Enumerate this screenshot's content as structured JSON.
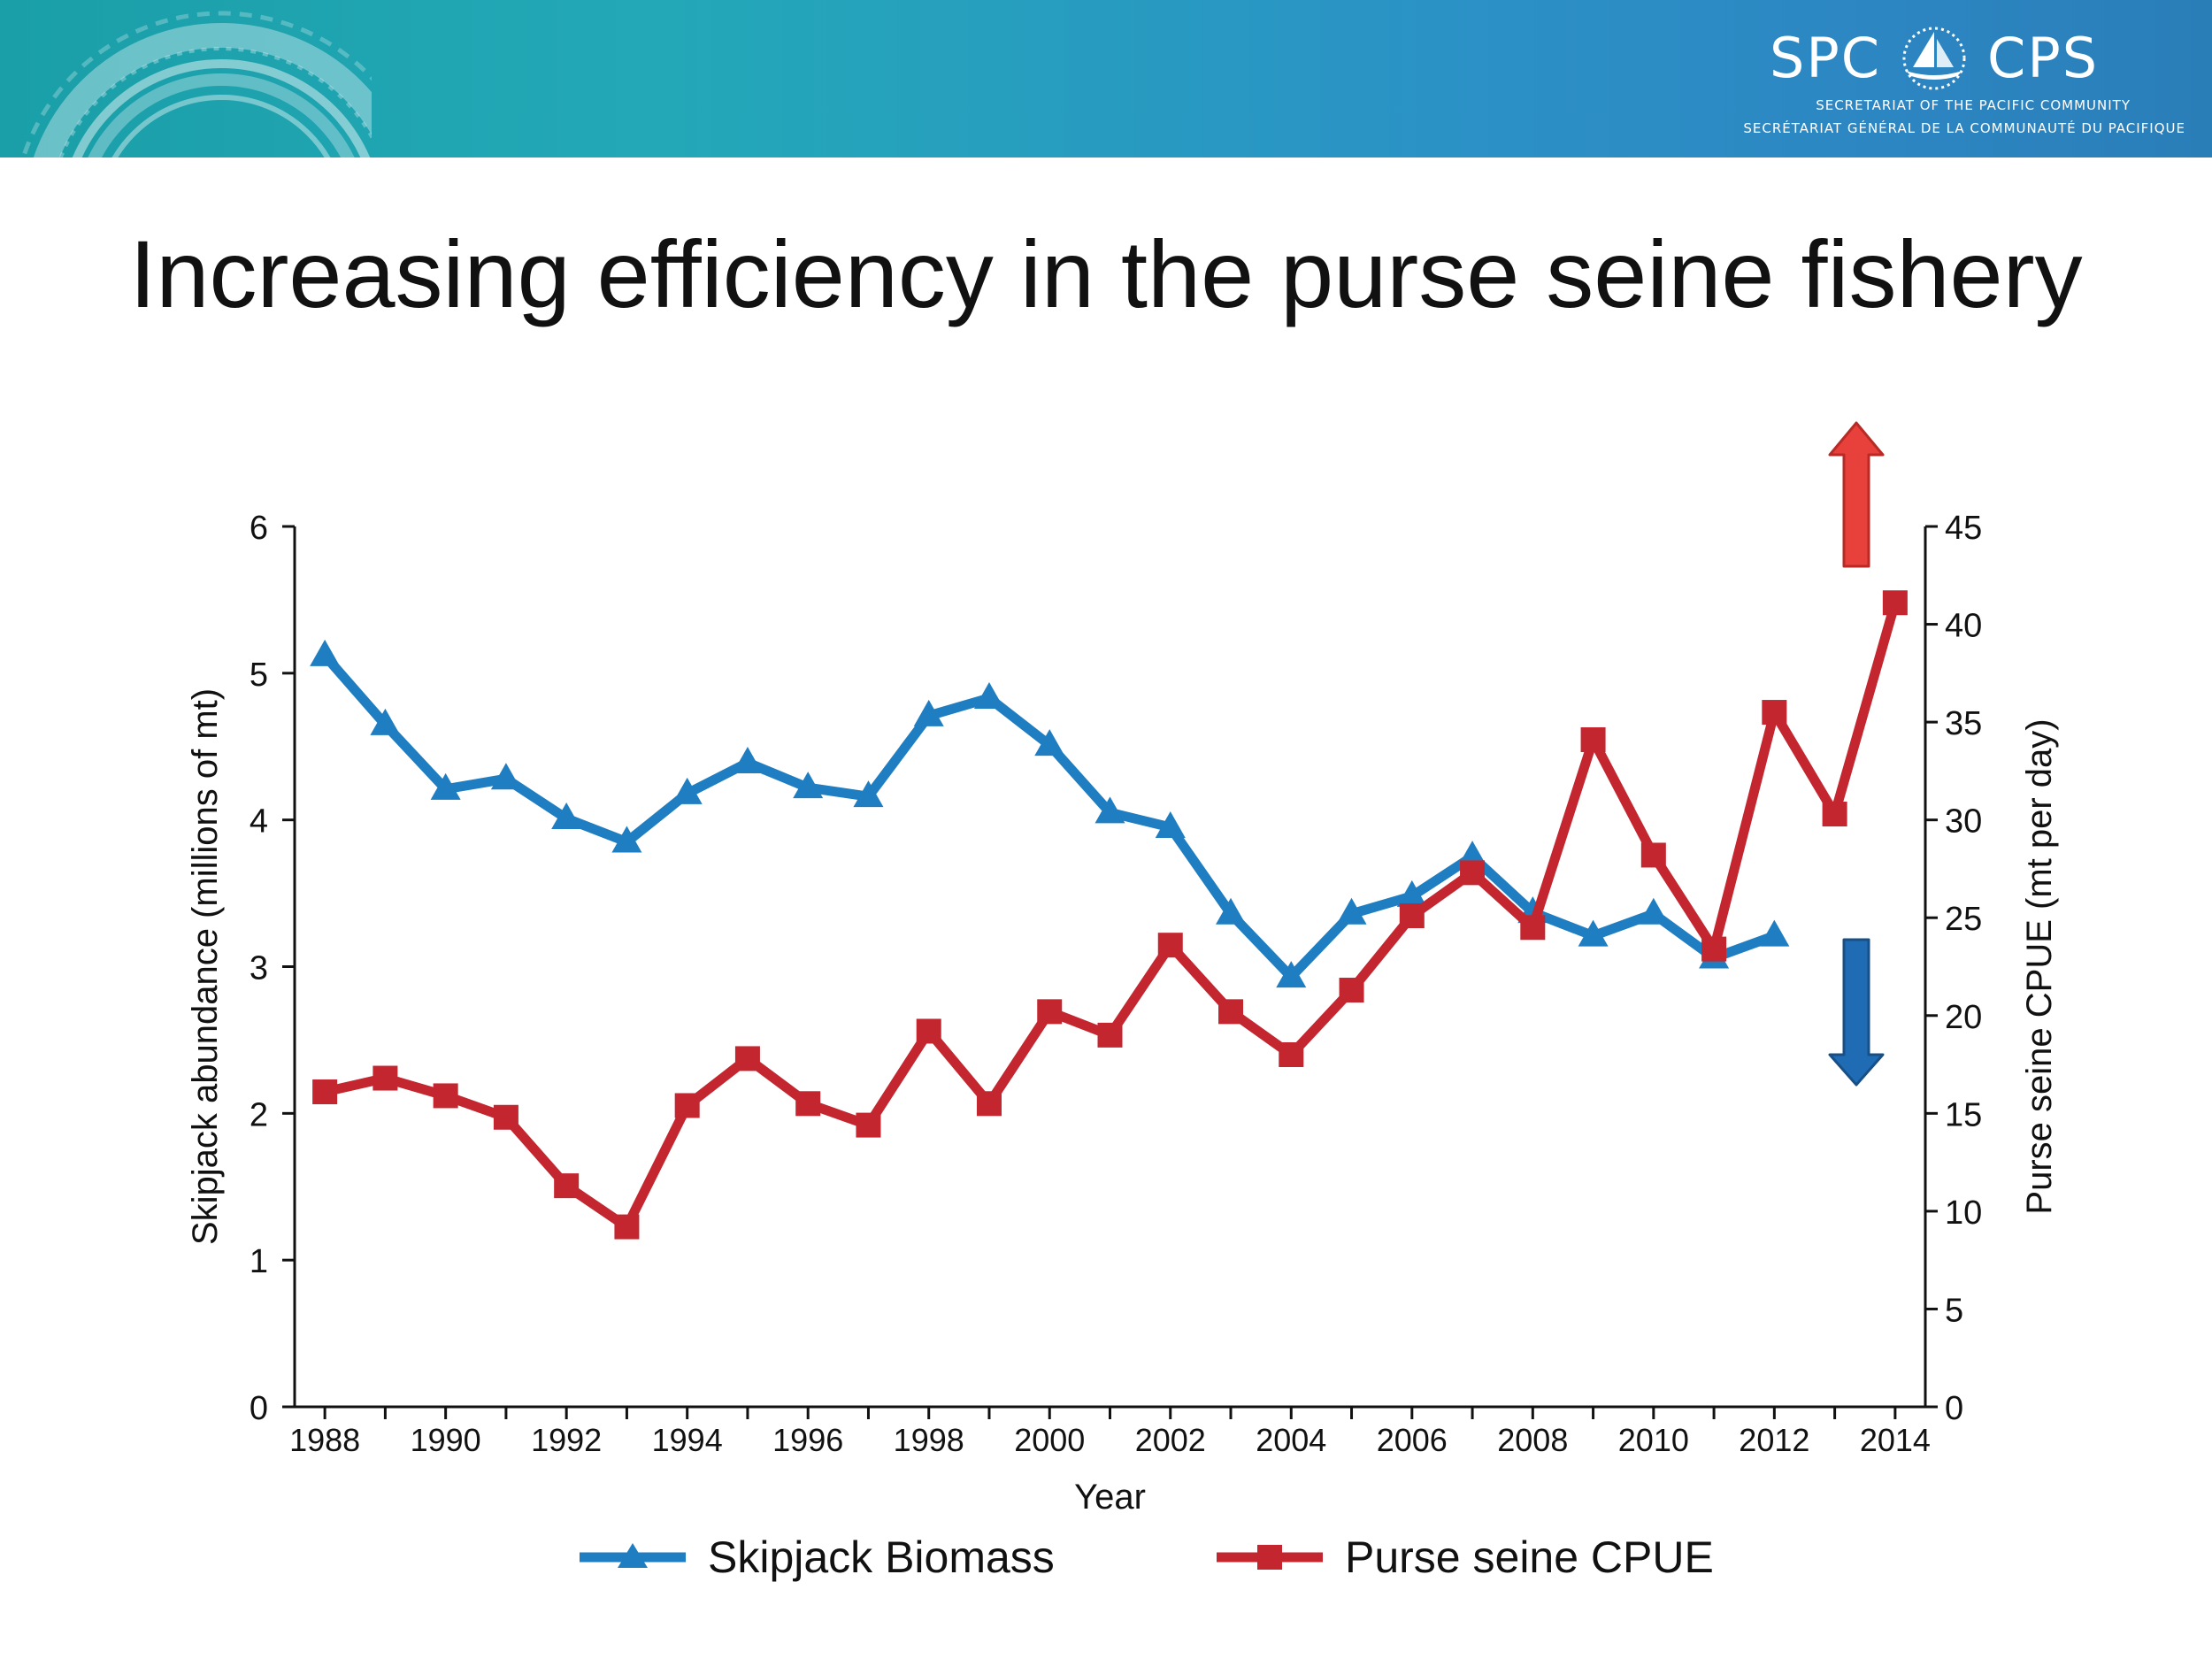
{
  "slide": {
    "title": "Increasing efficiency in the purse seine fishery"
  },
  "logo": {
    "left_text": "SPC",
    "right_text": "CPS",
    "line1": "Secretariat of the Pacific Community",
    "line2": "Secrétariat général de la Communauté du Pacifique"
  },
  "colors": {
    "banner": "#23a8b8",
    "biomass": "#1f7ec1",
    "cpue": "#c42630",
    "arrow_up": "#e8403a",
    "arrow_down": "#1f6cb5"
  },
  "chart_data": {
    "type": "line",
    "xlabel": "Year",
    "ylabel": "Skipjack abundance (millions of mt)",
    "y2label": "Purse seine CPUE (mt per day)",
    "xlim": [
      1987.5,
      2014.5
    ],
    "ylim": [
      0,
      6
    ],
    "y2lim": [
      0,
      45
    ],
    "x_ticks": [
      1988,
      1990,
      1992,
      1994,
      1996,
      1998,
      2000,
      2002,
      2004,
      2006,
      2008,
      2010,
      2012,
      2014
    ],
    "y_ticks": [
      0,
      1,
      2,
      3,
      4,
      5,
      6
    ],
    "y2_ticks": [
      0,
      5,
      10,
      15,
      20,
      25,
      30,
      35,
      40,
      45
    ],
    "grid": false,
    "legend_position": "bottom",
    "series": [
      {
        "name": "Skipjack Biomass",
        "axis": "left",
        "marker": "triangle",
        "color": "#1f7ec1",
        "x": [
          1988,
          1989,
          1990,
          1991,
          1992,
          1993,
          1994,
          1995,
          1996,
          1997,
          1998,
          1999,
          2000,
          2001,
          2002,
          2003,
          2004,
          2005,
          2006,
          2007,
          2008,
          2009,
          2010,
          2011,
          2012
        ],
        "values": [
          5.12,
          4.65,
          4.21,
          4.28,
          4.01,
          3.85,
          4.18,
          4.39,
          4.22,
          4.16,
          4.71,
          4.83,
          4.51,
          4.05,
          3.95,
          3.36,
          2.93,
          3.36,
          3.48,
          3.75,
          3.37,
          3.21,
          3.36,
          3.06,
          3.21
        ]
      },
      {
        "name": "Purse seine CPUE",
        "axis": "right",
        "marker": "square",
        "color": "#c42630",
        "x": [
          1988,
          1989,
          1990,
          1991,
          1992,
          1993,
          1994,
          1995,
          1996,
          1997,
          1998,
          1999,
          2000,
          2001,
          2002,
          2003,
          2004,
          2005,
          2006,
          2007,
          2008,
          2009,
          2010,
          2011,
          2012,
          2013,
          2014
        ],
        "values": [
          16.1,
          16.8,
          15.9,
          14.8,
          11.3,
          9.2,
          15.4,
          17.8,
          15.5,
          14.4,
          19.2,
          15.5,
          20.2,
          19.0,
          23.6,
          20.2,
          18.0,
          21.3,
          25.1,
          27.3,
          24.5,
          34.1,
          28.2,
          23.4,
          35.5,
          30.3,
          41.1
        ]
      }
    ]
  }
}
